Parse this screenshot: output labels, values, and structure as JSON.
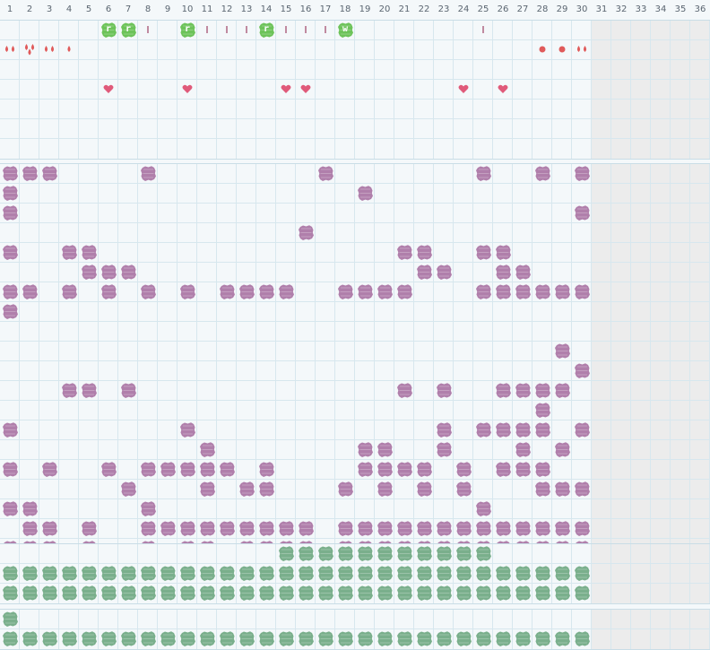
{
  "days": [
    "1",
    "2",
    "3",
    "4",
    "5",
    "6",
    "7",
    "8",
    "9",
    "10",
    "11",
    "12",
    "13",
    "14",
    "15",
    "16",
    "17",
    "18",
    "19",
    "20",
    "21",
    "22",
    "23",
    "24",
    "25",
    "26",
    "27",
    "28",
    "29",
    "30",
    "31",
    "32",
    "33",
    "34",
    "35",
    "36"
  ],
  "colors": {
    "purple": "#b07fab",
    "green": "#7aaf8c",
    "bright_green": "#6dc35a",
    "red": "#e05a5a",
    "pink": "#e05a7a",
    "tick": "#c08aa0",
    "grid": "#d7e7ee",
    "future": "#ececec"
  },
  "future_from_day": 31,
  "icons": {
    "drop": "water-drop-icon",
    "heart": "heart-icon",
    "dot": "dot-icon",
    "blob": "blob-icon",
    "tick": "tick-icon"
  },
  "top": {
    "labeled": [
      {
        "day": 6,
        "label": "r"
      },
      {
        "day": 7,
        "label": "r"
      },
      {
        "day": 10,
        "label": "r"
      },
      {
        "day": 14,
        "label": "r"
      },
      {
        "day": 18,
        "label": "w"
      }
    ],
    "ticks": [
      8,
      11,
      12,
      13,
      15,
      16,
      17,
      25
    ],
    "drops": [
      {
        "day": 1,
        "count": 2
      },
      {
        "day": 2,
        "count": 3
      },
      {
        "day": 3,
        "count": 2
      },
      {
        "day": 4,
        "count": 1
      },
      {
        "day": 30,
        "count": 2
      }
    ],
    "dots": [
      28,
      29
    ],
    "hearts": [
      6,
      10,
      15,
      16,
      24,
      26
    ]
  },
  "purple_rows": [
    [
      1,
      2,
      3,
      8,
      17,
      25,
      28,
      30
    ],
    [
      1,
      19
    ],
    [
      1,
      30
    ],
    [
      16
    ],
    [
      1,
      4,
      5,
      21,
      22,
      25,
      26
    ],
    [
      5,
      6,
      7,
      22,
      23,
      26,
      27
    ],
    [
      1,
      2,
      4,
      6,
      8,
      10,
      12,
      13,
      14,
      15,
      18,
      19,
      20,
      21,
      25,
      26,
      27,
      28,
      29,
      30
    ],
    [
      1
    ],
    [],
    [
      29
    ],
    [
      30
    ],
    [
      4,
      5,
      7,
      21,
      23,
      26,
      27,
      28,
      29
    ],
    [
      28
    ],
    [
      1,
      10,
      23,
      25,
      26,
      27,
      28,
      30
    ],
    [
      11,
      19,
      20,
      23,
      27,
      29
    ],
    [
      1,
      3,
      6,
      8,
      9,
      10,
      11,
      12,
      14,
      19,
      20,
      21,
      22,
      24,
      26,
      27,
      28
    ],
    [
      7,
      11,
      13,
      14,
      18,
      20,
      22,
      24,
      28,
      29,
      30
    ],
    [
      1,
      2,
      8,
      25
    ],
    [
      2,
      3,
      5,
      8,
      9,
      10,
      11,
      12,
      13,
      14,
      15,
      16,
      18,
      19,
      20,
      21,
      22,
      23,
      24,
      25,
      26,
      27,
      28,
      29,
      30
    ],
    [
      1,
      2,
      3,
      5,
      8,
      10,
      11,
      13,
      14,
      15,
      16,
      18,
      19,
      20,
      21,
      22,
      23,
      24,
      25,
      26,
      27,
      28,
      29,
      30
    ]
  ],
  "green_rows": [
    [
      15,
      16,
      17,
      18,
      19,
      20,
      21,
      22,
      23,
      24,
      25
    ],
    [
      1,
      2,
      3,
      4,
      5,
      6,
      7,
      8,
      9,
      10,
      11,
      12,
      13,
      14,
      15,
      16,
      17,
      18,
      19,
      20,
      21,
      22,
      23,
      24,
      25,
      26,
      27,
      28,
      29,
      30
    ],
    [
      1,
      2,
      3,
      4,
      5,
      6,
      7,
      8,
      9,
      10,
      11,
      12,
      13,
      14,
      15,
      16,
      17,
      18,
      19,
      20,
      21,
      22,
      23,
      24,
      25,
      26,
      27,
      28,
      29,
      30
    ]
  ],
  "green_rows_2": [
    [
      1
    ],
    [
      1,
      2,
      3,
      4,
      5,
      6,
      7,
      8,
      9,
      10,
      11,
      12,
      13,
      14,
      15,
      16,
      17,
      18,
      19,
      20,
      21,
      22,
      23,
      24,
      25,
      26,
      27,
      28,
      29,
      30
    ]
  ]
}
